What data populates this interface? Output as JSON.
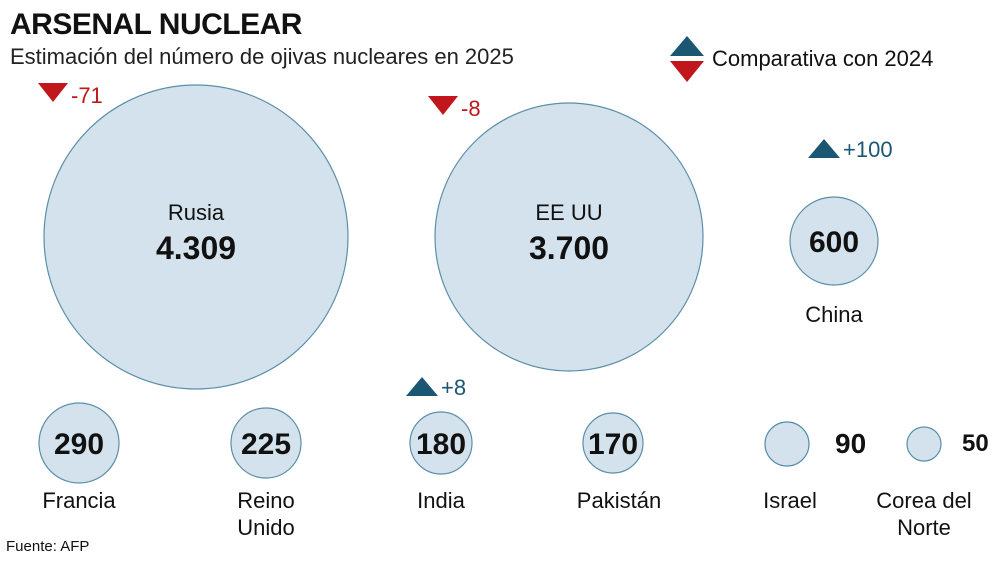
{
  "title": "ARSENAL NUCLEAR",
  "subtitle": "Estimación del número de ojivas nucleares en 2025",
  "legend": {
    "label": "Comparativa con 2024"
  },
  "source": "Fuente: AFP",
  "colors": {
    "bubble_fill": "#d3e2ec",
    "bubble_stroke": "#5b8fa8",
    "increase": "#1b5672",
    "decrease": "#c1161c"
  },
  "chart_data": {
    "type": "bubble",
    "title": "ARSENAL NUCLEAR",
    "subtitle": "Estimación del número de ojivas nucleares en 2025",
    "legend": "Comparativa con 2024",
    "items": [
      {
        "country": "Rusia",
        "value": 4309,
        "label": "4.309",
        "change": -71,
        "change_label": "-71"
      },
      {
        "country": "EE UU",
        "value": 3700,
        "label": "3.700",
        "change": -8,
        "change_label": "-8"
      },
      {
        "country": "China",
        "value": 600,
        "label": "600",
        "change": 100,
        "change_label": "+100"
      },
      {
        "country": "Francia",
        "value": 290,
        "label": "290"
      },
      {
        "country": "Reino Unido",
        "value": 225,
        "label": "225"
      },
      {
        "country": "India",
        "value": 180,
        "label": "180",
        "change": 8,
        "change_label": "+8"
      },
      {
        "country": "Pakistán",
        "value": 170,
        "label": "170"
      },
      {
        "country": "Israel",
        "value": 90,
        "label": "90"
      },
      {
        "country": "Corea del Norte",
        "value": 50,
        "label": "50"
      }
    ]
  }
}
